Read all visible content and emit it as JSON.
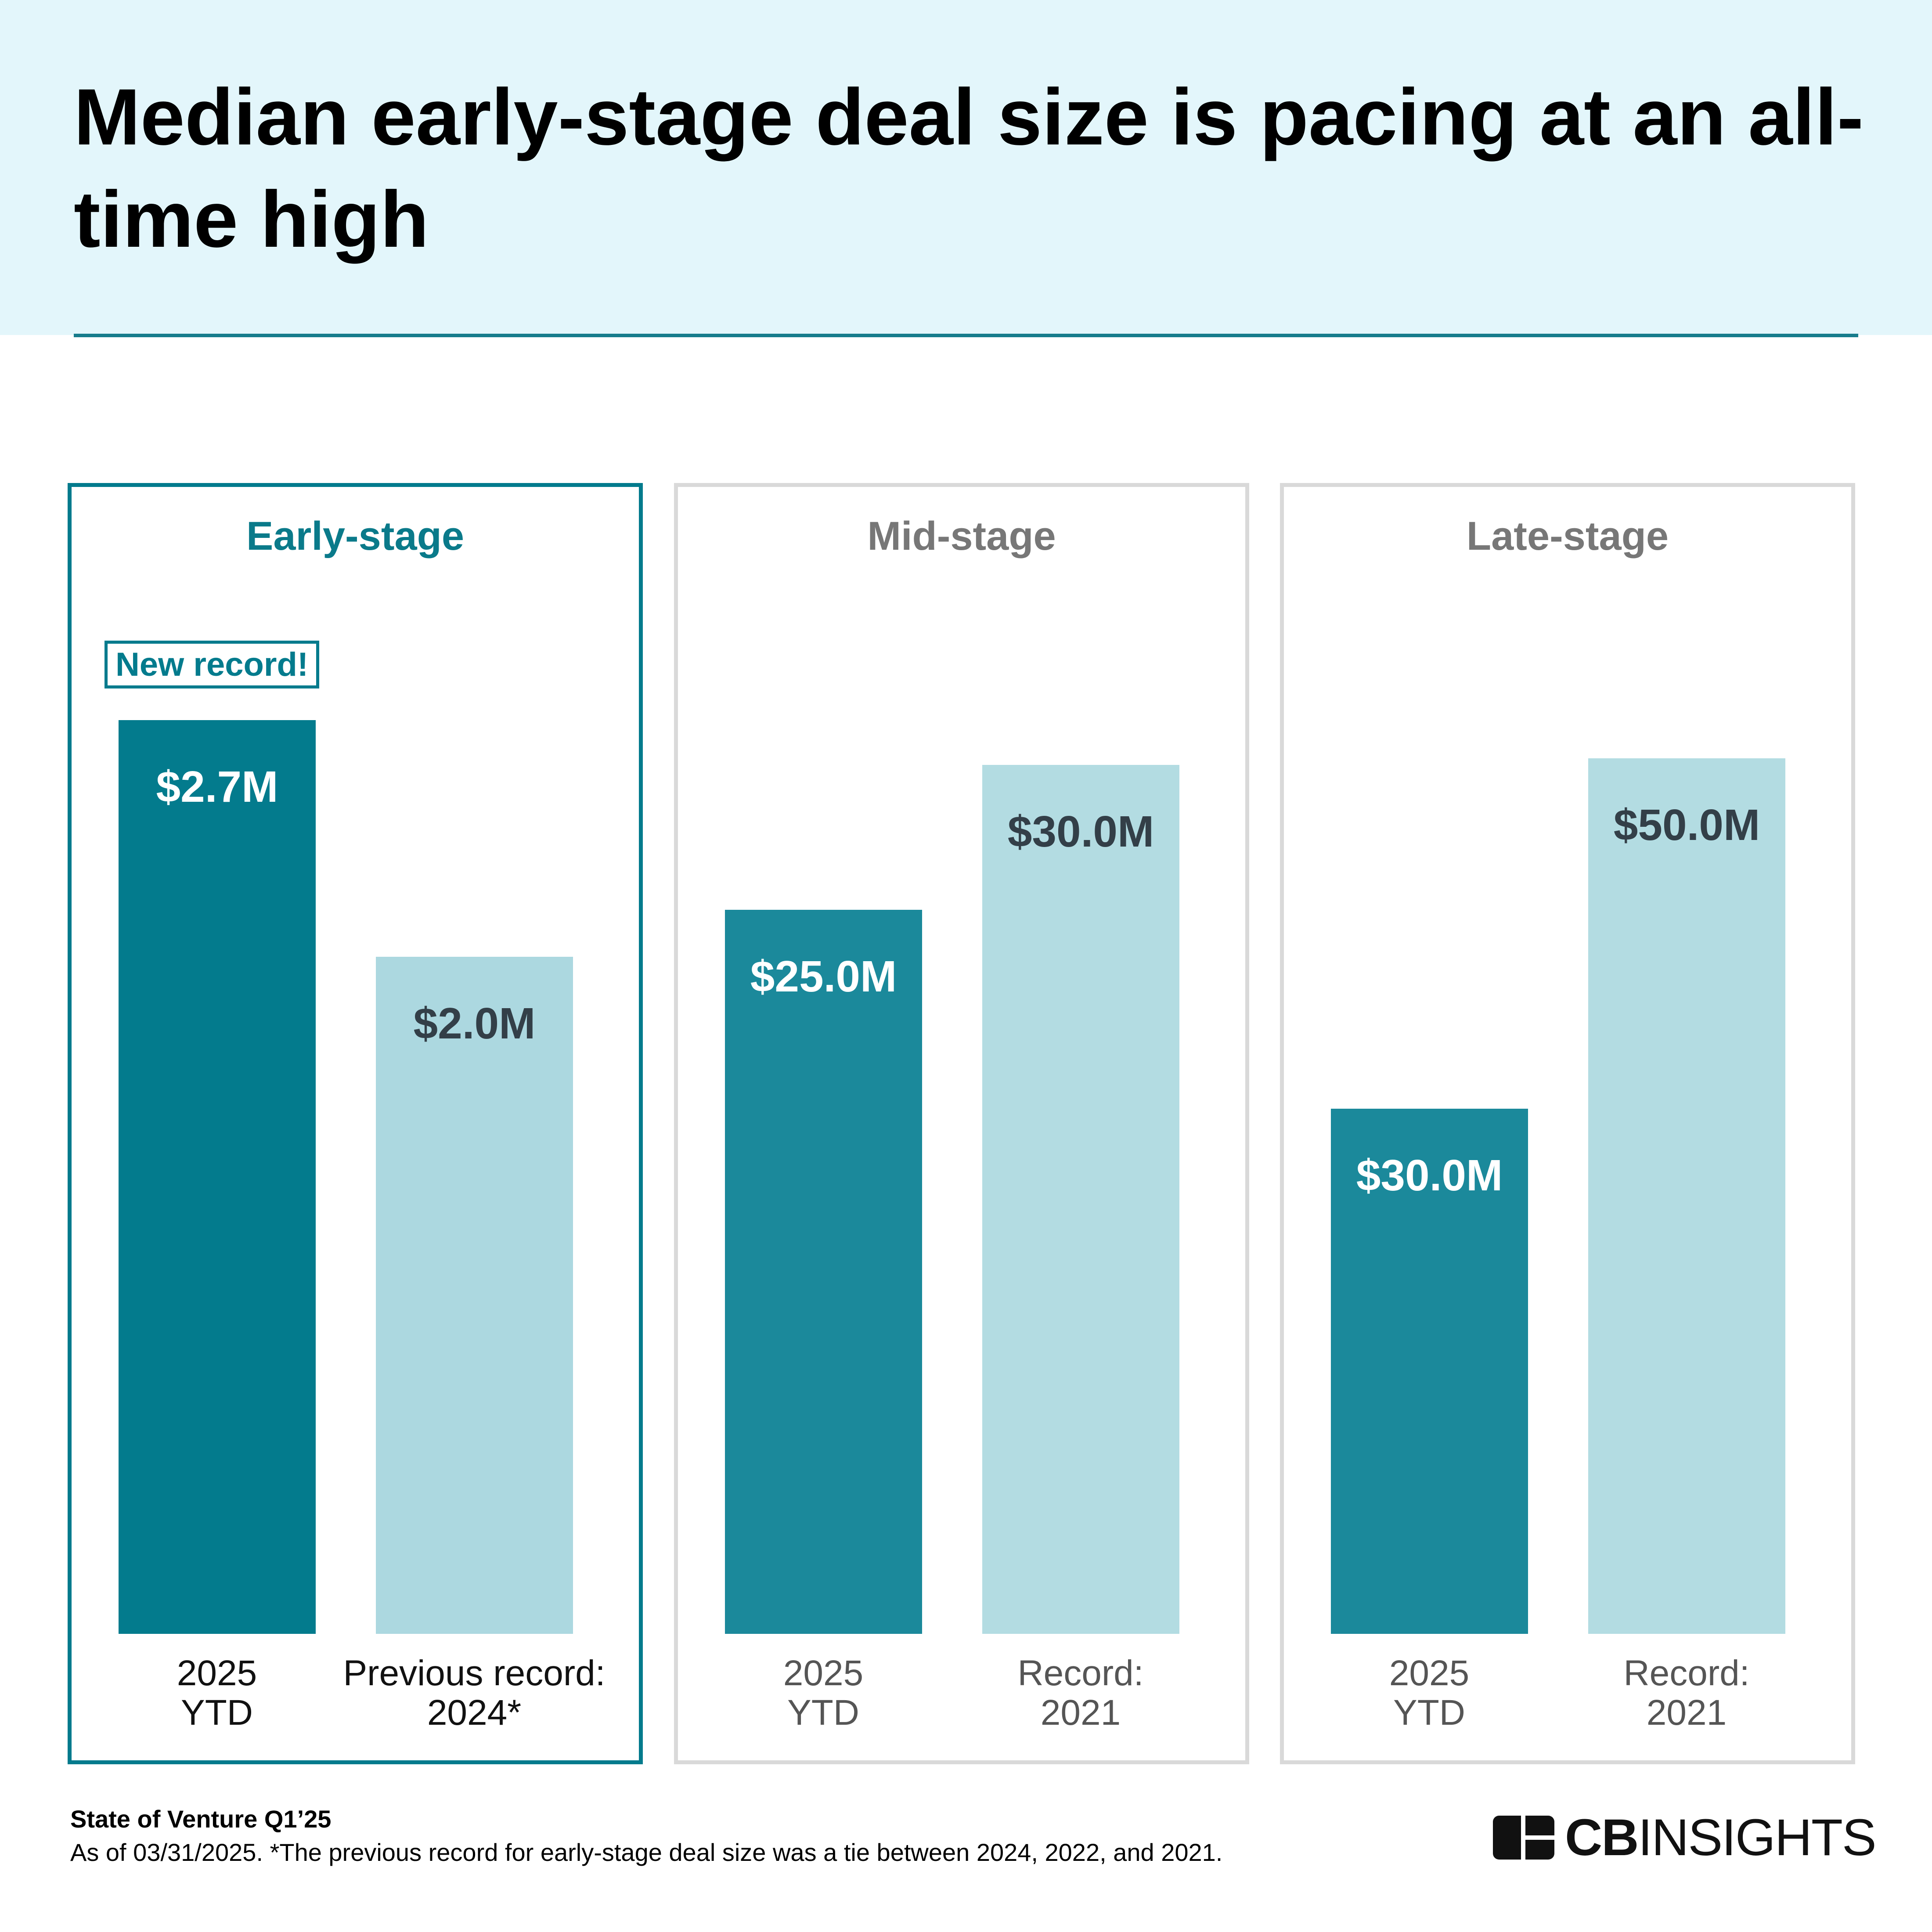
{
  "header": {
    "title": "Median early-stage deal size is pacing at an all-time high"
  },
  "chart_data": [
    {
      "type": "bar",
      "title": "Early-stage",
      "annotation": "New record!",
      "categories": [
        "2025\nYTD",
        "Previous record:\n2024*"
      ],
      "values": [
        2.7,
        2.0
      ],
      "value_labels": [
        "$2.7M",
        "$2.0M"
      ],
      "colors": [
        "#037b8d",
        "#acd8e0"
      ],
      "ylim": [
        0,
        2.85
      ],
      "highlight": true
    },
    {
      "type": "bar",
      "title": "Mid-stage",
      "categories": [
        "2025\nYTD",
        "Record:\n2021"
      ],
      "values": [
        25.0,
        30.0
      ],
      "value_labels": [
        "$25.0M",
        "$30.0M"
      ],
      "colors": [
        "#1b899b",
        "#b3dce2"
      ],
      "ylim": [
        0,
        33.3
      ],
      "highlight": false
    },
    {
      "type": "bar",
      "title": "Late-stage",
      "categories": [
        "2025\nYTD",
        "Record:\n2021"
      ],
      "values": [
        30.0,
        50.0
      ],
      "value_labels": [
        "$30.0M",
        "$50.0M"
      ],
      "colors": [
        "#1b899b",
        "#b3dce2"
      ],
      "ylim": [
        0,
        55.1
      ],
      "highlight": false
    }
  ],
  "footer": {
    "source": "State of Venture Q1’25",
    "note": "As of 03/31/2025. *The previous record for early-stage deal size was a tie between 2024, 2022, and 2021.",
    "logo_bold": "CB",
    "logo_light": "INSIGHTS"
  }
}
